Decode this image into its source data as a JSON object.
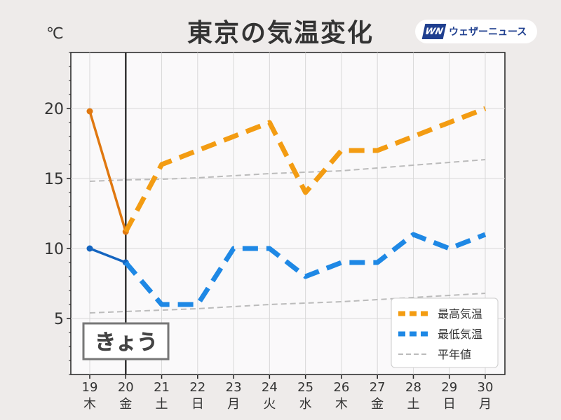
{
  "title": "東京の気温変化",
  "unit": "℃",
  "logo": {
    "mark": "WN",
    "text": "ウェザーニュース"
  },
  "today_label": "きょう",
  "chart_data": {
    "type": "line",
    "title": "東京の気温変化",
    "ylabel": "℃",
    "ylim": [
      1,
      24
    ],
    "yticks": [
      5,
      10,
      15,
      20
    ],
    "grid": true,
    "legend_position": "bottom-right",
    "x": [
      "19",
      "20",
      "21",
      "22",
      "23",
      "24",
      "25",
      "26",
      "27",
      "28",
      "29",
      "30"
    ],
    "weekdays": [
      "木",
      "金",
      "土",
      "日",
      "月",
      "火",
      "水",
      "木",
      "金",
      "土",
      "日",
      "月"
    ],
    "day_colors": [
      "#333333",
      "#d62728",
      "#1f77d4",
      "#d62728",
      "#333333",
      "#333333",
      "#333333",
      "#333333",
      "#333333",
      "#1f77d4",
      "#d62728",
      "#333333"
    ],
    "today_index": 1,
    "series": [
      {
        "name": "最高気温",
        "color": "#f39c12",
        "observed_color": "#e07810",
        "values": [
          19.8,
          11.2,
          16,
          17,
          18,
          19,
          14,
          17,
          17,
          18,
          19,
          20
        ]
      },
      {
        "name": "最低気温",
        "color": "#1e88e5",
        "observed_color": "#1565c0",
        "values": [
          10,
          9,
          6,
          6,
          10,
          10,
          8,
          9,
          9,
          11,
          10,
          11
        ]
      },
      {
        "name": "平年値",
        "color": "#bbbbbb",
        "lines": [
          [
            14.8,
            14.9,
            14.95,
            15.05,
            15.2,
            15.35,
            15.45,
            15.55,
            15.75,
            15.95,
            16.15,
            16.35
          ],
          [
            5.4,
            5.5,
            5.6,
            5.7,
            5.85,
            6.0,
            6.1,
            6.2,
            6.35,
            6.5,
            6.65,
            6.8
          ]
        ]
      }
    ]
  }
}
